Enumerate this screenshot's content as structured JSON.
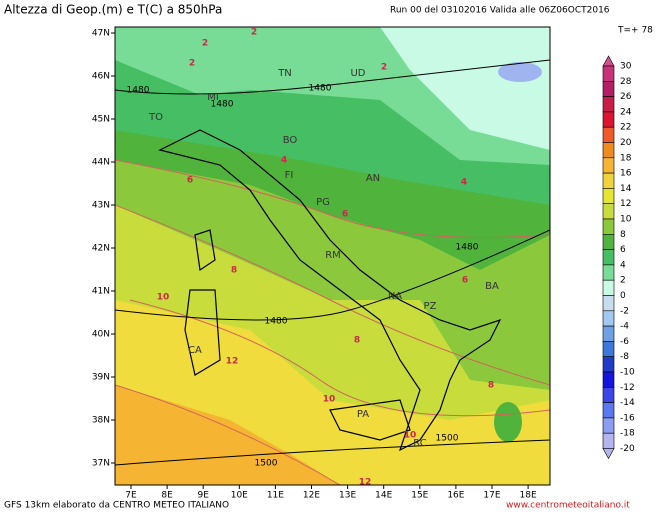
{
  "header": {
    "title": "Altezza di Geop.(m) e T(C) a 850hPa",
    "run": "Run 00 del 03102016  Valida alle 06Z06OCT2016",
    "step": "T=+ 78"
  },
  "latitudes": [
    "47N",
    "46N",
    "45N",
    "44N",
    "43N",
    "42N",
    "41N",
    "40N",
    "39N",
    "38N",
    "37N"
  ],
  "longitudes": [
    "7E",
    "8E",
    "9E",
    "10E",
    "11E",
    "12E",
    "13E",
    "14E",
    "15E",
    "16E",
    "17E",
    "18E"
  ],
  "colorbar": {
    "levels": [
      30,
      28,
      26,
      24,
      22,
      20,
      18,
      16,
      14,
      12,
      10,
      8,
      6,
      4,
      2,
      0,
      -2,
      -4,
      -6,
      -8,
      -10,
      -12,
      -14,
      -16,
      -18,
      -20
    ],
    "colors": [
      "#d2508c",
      "#c83278",
      "#b41e64",
      "#c81e46",
      "#dc1432",
      "#f05a28",
      "#f08c1e",
      "#f5b432",
      "#f0d23c",
      "#e6e632",
      "#c8dc3c",
      "#8cc83c",
      "#50b43c",
      "#46be64",
      "#78dc96",
      "#c8fae6",
      "#c8dcf0",
      "#a0c8f0",
      "#6ea0e6",
      "#3c78dc",
      "#1e3cc8",
      "#1414dc",
      "#3c46e6",
      "#5a78f0",
      "#8c9cf0",
      "#b4b4f0"
    ]
  },
  "cities": [
    "TN",
    "UD",
    "MI",
    "TO",
    "BO",
    "FI",
    "AN",
    "PG",
    "RM",
    "NA",
    "PZ",
    "BA",
    "CA",
    "PA",
    "RC"
  ],
  "contour_labels": [
    "2",
    "2",
    "2",
    "2",
    "4",
    "4",
    "6",
    "6",
    "6",
    "8",
    "8",
    "8",
    "10",
    "10",
    "10",
    "12",
    "12",
    "1480",
    "1480",
    "1480",
    "1480",
    "1480",
    "1500",
    "1500"
  ],
  "footer": {
    "source": "GFS 13km elaborato da CENTRO METEO ITALIANO",
    "website": "www.centrometeoitaliano.it"
  }
}
